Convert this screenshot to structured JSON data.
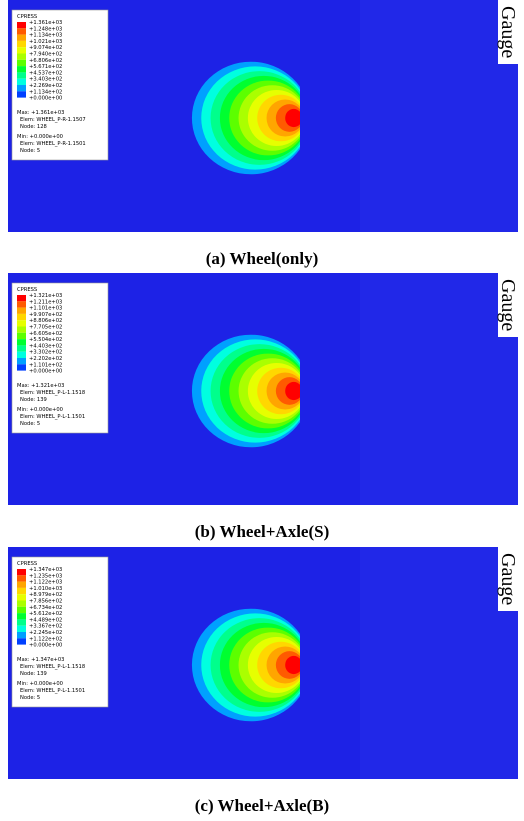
{
  "panels": [
    {
      "legend_title": "CPRESS",
      "levels": [
        "+1.361e+03",
        "+1.248e+03",
        "+1.134e+03",
        "+1.021e+03",
        "+9.074e+02",
        "+7.940e+02",
        "+6.806e+02",
        "+5.671e+02",
        "+4.537e+02",
        "+3.403e+02",
        "+2.269e+02",
        "+1.134e+02",
        "+0.000e+00"
      ],
      "max": [
        "Max: +1.361e+03",
        "Elem: WHEEL_P-R-1.1507",
        "Node: 128"
      ],
      "min": [
        "Min: +0.000e+00",
        "Elem: WHEEL_P-R-1.1501",
        "Node: 5"
      ],
      "side_label": "Gauge",
      "caption": "(a)  Wheel(only)"
    },
    {
      "legend_title": "CPRESS",
      "levels": [
        "+1.321e+03",
        "+1.211e+03",
        "+1.101e+03",
        "+9.907e+02",
        "+8.806e+02",
        "+7.705e+02",
        "+6.605e+02",
        "+5.504e+02",
        "+4.403e+02",
        "+3.302e+02",
        "+2.202e+02",
        "+1.101e+02",
        "+0.000e+00"
      ],
      "max": [
        "Max: +1.321e+03",
        "Elem: WHEEL_P-L-1.1518",
        "Node: 139"
      ],
      "min": [
        "Min: +0.000e+00",
        "Elem: WHEEL_P-L-1.1501",
        "Node: 5"
      ],
      "side_label": "Gauge",
      "caption": "(b)  Wheel+Axle(S)"
    },
    {
      "legend_title": "CPRESS",
      "levels": [
        "+1.347e+03",
        "+1.235e+03",
        "+1.122e+03",
        "+1.010e+03",
        "+8.979e+02",
        "+7.856e+02",
        "+6.734e+02",
        "+5.612e+02",
        "+4.489e+02",
        "+3.367e+02",
        "+2.245e+02",
        "+1.122e+02",
        "+0.000e+00"
      ],
      "max": [
        "Max: +1.347e+03",
        "Elem: WHEEL_P-L-1.1518",
        "Node: 139"
      ],
      "min": [
        "Min: +0.000e+00",
        "Elem: WHEEL_P-L-1.1501",
        "Node: 5"
      ],
      "side_label": "Gauge",
      "caption": "(c)  Wheel+Axle(B)"
    }
  ]
}
